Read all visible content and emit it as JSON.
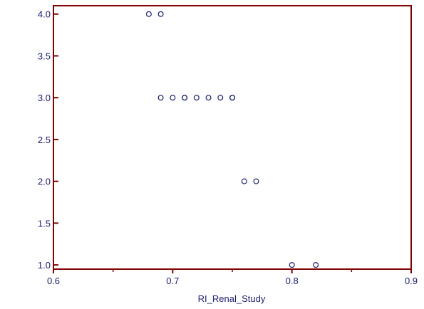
{
  "chart_data": {
    "type": "scatter",
    "title": "",
    "xlabel": "RI_Renal_Study",
    "ylabel": "",
    "xlim": [
      0.6,
      0.9
    ],
    "ylim": [
      0.95,
      4.1
    ],
    "x_ticks": [
      0.6,
      0.7,
      0.8,
      0.9
    ],
    "x_tick_labels": [
      "0.6",
      "0.7",
      "0.8",
      "0.9"
    ],
    "y_ticks": [
      1.0,
      1.5,
      2.0,
      2.5,
      3.0,
      3.5,
      4.0
    ],
    "y_tick_labels": [
      "1.0",
      "1.5",
      "2.0",
      "2.5",
      "3.0",
      "3.5",
      "4.0"
    ],
    "grid": false,
    "marker": "open-circle",
    "colors": {
      "axis": "#800000",
      "marker": "#1a1f6e",
      "text": "#1a1f6e"
    },
    "series": [
      {
        "points": [
          {
            "x": 0.68,
            "y": 4.0
          },
          {
            "x": 0.69,
            "y": 4.0
          },
          {
            "x": 0.69,
            "y": 3.0
          },
          {
            "x": 0.7,
            "y": 3.0
          },
          {
            "x": 0.71,
            "y": 3.0
          },
          {
            "x": 0.71,
            "y": 3.0
          },
          {
            "x": 0.72,
            "y": 3.0
          },
          {
            "x": 0.73,
            "y": 3.0
          },
          {
            "x": 0.74,
            "y": 3.0
          },
          {
            "x": 0.75,
            "y": 3.0
          },
          {
            "x": 0.75,
            "y": 3.0
          },
          {
            "x": 0.76,
            "y": 2.0
          },
          {
            "x": 0.77,
            "y": 2.0
          },
          {
            "x": 0.8,
            "y": 1.0
          },
          {
            "x": 0.82,
            "y": 1.0
          }
        ]
      }
    ]
  }
}
